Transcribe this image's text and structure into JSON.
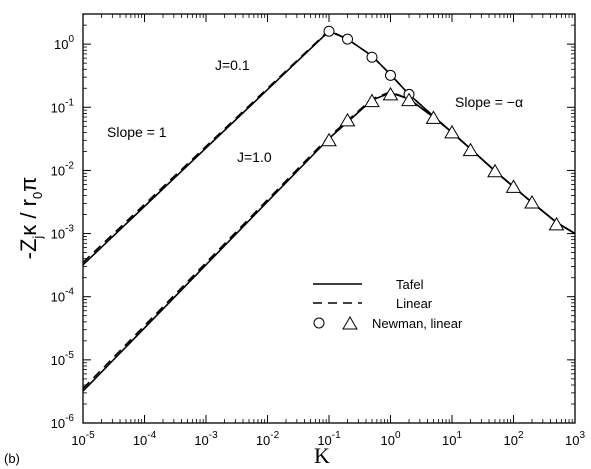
{
  "chart_data": {
    "type": "line",
    "panel_label": "(b)",
    "xlabel": "K",
    "ylabel": {
      "minus_z": "-Z",
      "sub_j": "j",
      "kappa": "κ",
      "r": " / r",
      "sub_0": "0",
      "pi": "π"
    },
    "xscale": "log",
    "yscale": "log",
    "xlim": [
      1e-05,
      1000
    ],
    "ylim": [
      1e-06,
      3
    ],
    "x_ticks": [
      {
        "exp": -5,
        "label": "10",
        "sup": "-5"
      },
      {
        "exp": -4,
        "label": "10",
        "sup": "-4"
      },
      {
        "exp": -3,
        "label": "10",
        "sup": "-3"
      },
      {
        "exp": -2,
        "label": "10",
        "sup": "-2"
      },
      {
        "exp": -1,
        "label": "10",
        "sup": "-1"
      },
      {
        "exp": 0,
        "label": "10",
        "sup": "0"
      },
      {
        "exp": 1,
        "label": "10",
        "sup": "1"
      },
      {
        "exp": 2,
        "label": "10",
        "sup": "2"
      },
      {
        "exp": 3,
        "label": "10",
        "sup": "3"
      }
    ],
    "y_ticks": [
      {
        "exp": -6,
        "label": "10",
        "sup": "-6"
      },
      {
        "exp": -5,
        "label": "10",
        "sup": "-5"
      },
      {
        "exp": -4,
        "label": "10",
        "sup": "-4"
      },
      {
        "exp": -3,
        "label": "10",
        "sup": "-3"
      },
      {
        "exp": -2,
        "label": "10",
        "sup": "-2"
      },
      {
        "exp": -1,
        "label": "10",
        "sup": "-1"
      },
      {
        "exp": 0,
        "label": "10",
        "sup": "0"
      }
    ],
    "annotations": [
      {
        "text": "J=0.1"
      },
      {
        "text": "J=1.0"
      },
      {
        "text": "Slope = 1"
      },
      {
        "text": "Slope = −α"
      }
    ],
    "legend": {
      "placement": "center-right",
      "entries": [
        {
          "label": "Tafel",
          "style": "solid"
        },
        {
          "label": "Linear",
          "style": "dashed"
        },
        {
          "label": "Newman, linear",
          "style": "markers"
        }
      ]
    },
    "series": [
      {
        "case": "J=0.1",
        "style": "solid",
        "x": [
          1e-05,
          0.1,
          0.2,
          0.5,
          1,
          2,
          5,
          10,
          20,
          50,
          100,
          200,
          500,
          1000
        ],
        "y": [
          0.00032,
          1.6,
          1.2,
          0.65,
          0.33,
          0.16,
          0.072,
          0.04,
          0.022,
          0.0098,
          0.0055,
          0.0031,
          0.0015,
          0.001
        ]
      },
      {
        "case": "J=0.1",
        "style": "dashed",
        "x": [
          1e-05,
          0.1,
          0.2,
          0.5,
          1,
          2,
          5,
          10,
          20,
          50,
          100,
          200,
          500,
          1000
        ],
        "y": [
          0.00035,
          1.65,
          1.2,
          0.65,
          0.33,
          0.16,
          0.072,
          0.04,
          0.022,
          0.0098,
          0.0055,
          0.0031,
          0.0015,
          0.001
        ]
      },
      {
        "case": "J=1.0",
        "style": "solid",
        "x": [
          1e-05,
          0.1,
          0.5,
          1,
          2,
          5,
          10,
          20,
          50,
          100,
          200,
          500,
          1000
        ],
        "y": [
          3.2e-06,
          0.032,
          0.13,
          0.17,
          0.135,
          0.07,
          0.04,
          0.022,
          0.0098,
          0.0055,
          0.0031,
          0.0015,
          0.001
        ]
      },
      {
        "case": "J=1.0",
        "style": "dashed",
        "x": [
          1e-05,
          0.1,
          0.5,
          1,
          2,
          5,
          10,
          20,
          50,
          100,
          200,
          500,
          1000
        ],
        "y": [
          3.5e-06,
          0.034,
          0.135,
          0.175,
          0.135,
          0.07,
          0.04,
          0.022,
          0.0098,
          0.0055,
          0.0031,
          0.0015,
          0.001
        ]
      }
    ],
    "markers": {
      "circles": {
        "case": "J=0.1",
        "x": [
          0.1,
          0.2,
          0.5,
          1,
          2
        ],
        "y": [
          1.6,
          1.2,
          0.62,
          0.32,
          0.16
        ]
      },
      "triangles": {
        "case": "J=1.0",
        "x": [
          0.1,
          0.2,
          0.5,
          1,
          2,
          5,
          10,
          20,
          50,
          100,
          200,
          500
        ],
        "y": [
          0.03,
          0.062,
          0.125,
          0.16,
          0.13,
          0.068,
          0.04,
          0.021,
          0.0097,
          0.0055,
          0.0031,
          0.0014
        ]
      }
    }
  }
}
